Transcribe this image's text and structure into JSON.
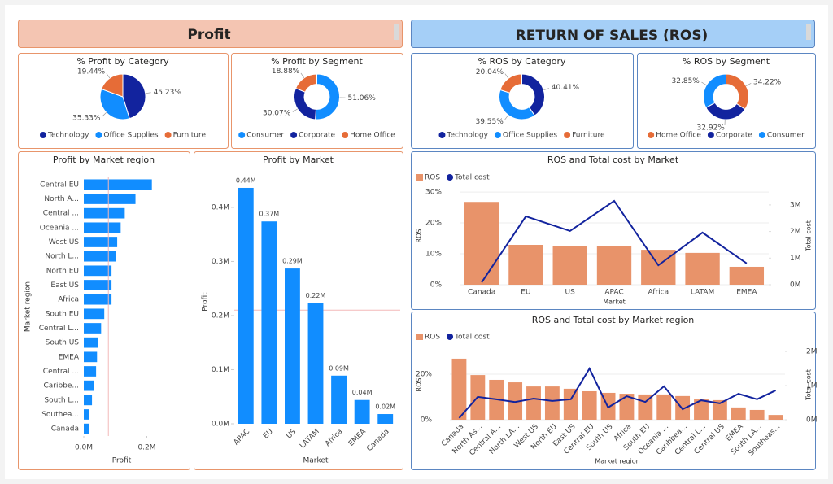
{
  "headers": [
    "Profit",
    "RETURN OF SALES (ROS)"
  ],
  "chart_data": [
    {
      "type": "pie",
      "title": "% Profit by Category",
      "categories": [
        "Technology",
        "Office Supplies",
        "Furniture"
      ],
      "values": [
        45.23,
        35.33,
        19.44
      ],
      "value_labels": [
        "45.23%",
        "35.33%",
        "19.44%"
      ],
      "colors": [
        "#12239e",
        "#118dff",
        "#e66c37"
      ]
    },
    {
      "type": "donut",
      "title": "% Profit by Segment",
      "categories": [
        "Consumer",
        "Corporate",
        "Home Office"
      ],
      "values": [
        51.06,
        30.07,
        18.88
      ],
      "value_labels": [
        "51.06%",
        "30.07%",
        "18.88%"
      ],
      "colors": [
        "#118dff",
        "#12239e",
        "#e66c37"
      ]
    },
    {
      "type": "pie",
      "title": "% ROS by Category",
      "categories": [
        "Technology",
        "Office Supplies",
        "Furniture"
      ],
      "values": [
        40.41,
        39.55,
        20.04
      ],
      "value_labels": [
        "40.41%",
        "39.55%",
        "20.04%"
      ],
      "colors": [
        "#12239e",
        "#118dff",
        "#e66c37"
      ]
    },
    {
      "type": "donut",
      "title": "% ROS by Segment",
      "categories": [
        "Home Office",
        "Corporate",
        "Consumer"
      ],
      "values": [
        34.22,
        32.92,
        32.85
      ],
      "value_labels": [
        "34.22%",
        "32.92%",
        "32.85%"
      ],
      "colors": [
        "#e66c37",
        "#12239e",
        "#118dff"
      ]
    },
    {
      "type": "hbar",
      "title": "Profit by Market region",
      "xlabel": "Profit",
      "ylabel": "Market region",
      "color": "#118dff",
      "categories": [
        "Central EU",
        "North A...",
        "Central ...",
        "Oceania ...",
        "West US",
        "North L...",
        "North EU",
        "East US",
        "Africa",
        "South EU",
        "Central L...",
        "South US",
        "EMEA",
        "Central ...",
        "Caribbe...",
        "South L...",
        "Southea...",
        "Canada"
      ],
      "values": [
        0.216,
        0.164,
        0.13,
        0.117,
        0.106,
        0.101,
        0.088,
        0.088,
        0.088,
        0.065,
        0.055,
        0.044,
        0.042,
        0.039,
        0.031,
        0.026,
        0.018,
        0.018
      ],
      "xlim": [
        0,
        0.24
      ],
      "xticks": [
        {
          "value": 0,
          "label": "0.0M"
        },
        {
          "value": 0.2,
          "label": "0.2M"
        }
      ],
      "reference_line": 0.078
    },
    {
      "type": "bar",
      "title": "Profit by Market",
      "xlabel": "Market",
      "ylabel": "Profit",
      "color": "#118dff",
      "categories": [
        "APAC",
        "EU",
        "US",
        "LATAM",
        "Africa",
        "EMEA",
        "Canada"
      ],
      "values": [
        0.436,
        0.374,
        0.287,
        0.223,
        0.089,
        0.044,
        0.018
      ],
      "value_labels": [
        "0.44M",
        "0.37M",
        "0.29M",
        "0.22M",
        "0.09M",
        "0.04M",
        "0.02M"
      ],
      "ylim": [
        0,
        0.451
      ],
      "yticks": [
        {
          "value": 0,
          "label": "0.0M"
        },
        {
          "value": 0.1,
          "label": "0.1M"
        },
        {
          "value": 0.2,
          "label": "0.2M"
        },
        {
          "value": 0.3,
          "label": "0.3M"
        },
        {
          "value": 0.4,
          "label": "0.4M"
        }
      ],
      "reference_line": 0.21
    },
    {
      "type": "combo",
      "title": "ROS and Total cost by Market",
      "xlabel": "Market",
      "ylabel": "ROS",
      "y2label": "Total cost",
      "categories": [
        "Canada",
        "EU",
        "US",
        "APAC",
        "Africa",
        "LATAM",
        "EMEA"
      ],
      "series": [
        {
          "name": "ROS",
          "color": "#e8936a",
          "kind": "bar",
          "values": [
            26.8,
            12.9,
            12.4,
            12.4,
            11.3,
            10.3,
            5.8
          ]
        },
        {
          "name": "Total cost",
          "color": "#12239e",
          "kind": "line",
          "axis": "y2",
          "values": [
            0.09,
            2.57,
            2.02,
            3.15,
            0.73,
            1.96,
            0.8
          ]
        }
      ],
      "ylim": [
        0,
        31.6
      ],
      "yticks": [
        {
          "value": 0,
          "label": "0%"
        },
        {
          "value": 10,
          "label": "10%"
        },
        {
          "value": 20,
          "label": "20%"
        },
        {
          "value": 30,
          "label": "30%"
        }
      ],
      "y2lim": [
        0,
        3.67
      ],
      "y2ticks": [
        {
          "value": 0,
          "label": "0M"
        },
        {
          "value": 1,
          "label": "1M"
        },
        {
          "value": 2,
          "label": "2M"
        },
        {
          "value": 3,
          "label": "3M"
        }
      ]
    },
    {
      "type": "combo",
      "title": "ROS and Total cost by Market region",
      "xlabel": "Market region",
      "ylabel": "ROS",
      "y2label": "Total cost",
      "categories": [
        "Canada",
        "North As...",
        "Central A...",
        "North LA...",
        "West US",
        "North EU",
        "East US",
        "Central EU",
        "South US",
        "Africa",
        "South EU",
        "Oceania ...",
        "Caribbea...",
        "Central L...",
        "Central US",
        "EMEA",
        "South LA...",
        "Southeas..."
      ],
      "series": [
        {
          "name": "ROS",
          "color": "#e8936a",
          "kind": "bar",
          "values": [
            26.8,
            19.6,
            17.5,
            16.4,
            14.6,
            14.6,
            13.6,
            12.5,
            11.8,
            11.4,
            11.1,
            11.1,
            10.4,
            8.9,
            8.6,
            5.4,
            4.3,
            2.1
          ]
        },
        {
          "name": "Total cost",
          "color": "#12239e",
          "kind": "line",
          "axis": "y2",
          "values": [
            0.05,
            0.67,
            0.6,
            0.52,
            0.62,
            0.55,
            0.6,
            1.5,
            0.36,
            0.69,
            0.52,
            0.98,
            0.31,
            0.57,
            0.48,
            0.76,
            0.6,
            0.86
          ]
        }
      ],
      "ylim": [
        0,
        30.7
      ],
      "yticks": [
        {
          "value": 0,
          "label": "0%"
        },
        {
          "value": 20,
          "label": "20%"
        }
      ],
      "y2lim": [
        0,
        2.05
      ],
      "y2ticks": [
        {
          "value": 0,
          "label": "0M"
        },
        {
          "value": 1,
          "label": "1M"
        },
        {
          "value": 2,
          "label": "2M"
        }
      ]
    }
  ]
}
